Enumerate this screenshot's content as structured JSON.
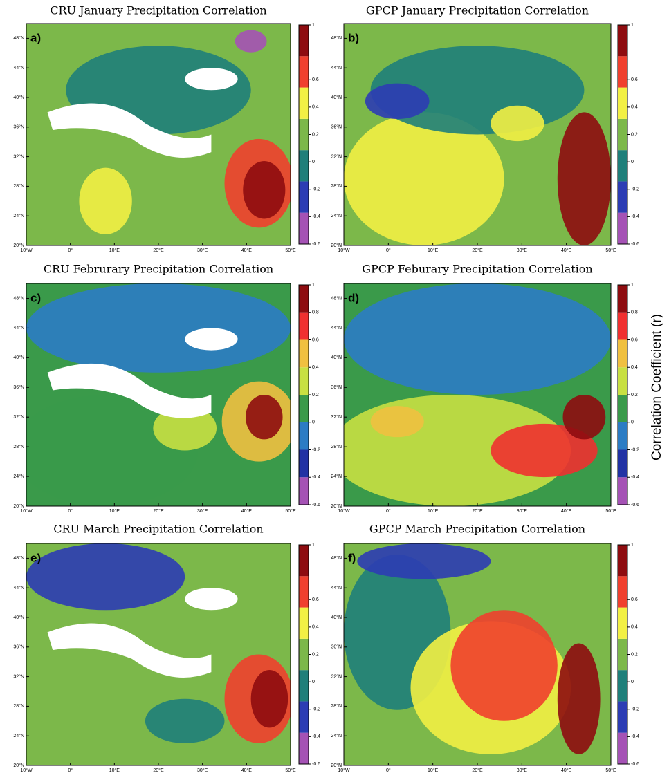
{
  "chart_data": [
    {
      "type": "map",
      "title": "CRU January Precipitation Correlation",
      "label": "a)",
      "xlim": [
        -10,
        50
      ],
      "ylim": [
        20,
        50
      ],
      "xticks": [
        {
          "value": -10,
          "label": "10°W"
        },
        {
          "value": 0,
          "label": "0°"
        },
        {
          "value": 10,
          "label": "10°E"
        },
        {
          "value": 20,
          "label": "20°E"
        },
        {
          "value": 30,
          "label": "30°E"
        },
        {
          "value": 40,
          "label": "40°E"
        },
        {
          "value": 50,
          "label": "50°E"
        }
      ],
      "yticks": [
        {
          "value": 20,
          "label": "20°N"
        },
        {
          "value": 24,
          "label": "24°N"
        },
        {
          "value": 28,
          "label": "28°N"
        },
        {
          "value": 32,
          "label": "32°N"
        },
        {
          "value": 36,
          "label": "36°N"
        },
        {
          "value": 40,
          "label": "40°N"
        },
        {
          "value": 44,
          "label": "44°N"
        },
        {
          "value": 48,
          "label": "48°N"
        }
      ],
      "clim": [
        -0.6,
        1
      ],
      "cticks": [
        1,
        0.6,
        0.4,
        0.2,
        0,
        -0.2,
        -0.4,
        -0.6
      ],
      "colors": [
        "#a552b5",
        "#2c3cb4",
        "#1f7f7a",
        "#7cb84a",
        "#f2f044",
        "#f0402e",
        "#8e0c10"
      ]
    },
    {
      "type": "map",
      "title": "GPCP January Precipitation Correlation",
      "label": "b)",
      "xlim": [
        -10,
        50
      ],
      "ylim": [
        20,
        50
      ],
      "xticks": [
        {
          "value": -10,
          "label": "10°W"
        },
        {
          "value": 0,
          "label": "0°"
        },
        {
          "value": 10,
          "label": "10°E"
        },
        {
          "value": 20,
          "label": "20°E"
        },
        {
          "value": 30,
          "label": "30°E"
        },
        {
          "value": 40,
          "label": "40°E"
        },
        {
          "value": 50,
          "label": "50°E"
        }
      ],
      "yticks": [
        {
          "value": 20,
          "label": "20°N"
        },
        {
          "value": 24,
          "label": "24°N"
        },
        {
          "value": 28,
          "label": "28°N"
        },
        {
          "value": 32,
          "label": "32°N"
        },
        {
          "value": 36,
          "label": "36°N"
        },
        {
          "value": 40,
          "label": "40°N"
        },
        {
          "value": 44,
          "label": "44°N"
        },
        {
          "value": 48,
          "label": "48°N"
        }
      ],
      "clim": [
        -0.6,
        1
      ],
      "cticks": [
        1,
        0.6,
        0.4,
        0.2,
        0,
        -0.2,
        -0.4,
        -0.6
      ],
      "colors": [
        "#a552b5",
        "#2c3cb4",
        "#1f7f7a",
        "#7cb84a",
        "#f2f044",
        "#f0402e",
        "#8e0c10"
      ]
    },
    {
      "type": "map",
      "title": "CRU Februrary Precipitation Correlation",
      "label": "c)",
      "xlim": [
        -10,
        50
      ],
      "ylim": [
        20,
        50
      ],
      "xticks": [
        {
          "value": -10,
          "label": "10°W"
        },
        {
          "value": 0,
          "label": "0°"
        },
        {
          "value": 10,
          "label": "10°E"
        },
        {
          "value": 20,
          "label": "20°E"
        },
        {
          "value": 30,
          "label": "30°E"
        },
        {
          "value": 40,
          "label": "40°E"
        },
        {
          "value": 50,
          "label": "50°E"
        }
      ],
      "yticks": [
        {
          "value": 20,
          "label": "20°N"
        },
        {
          "value": 24,
          "label": "24°N"
        },
        {
          "value": 28,
          "label": "28°N"
        },
        {
          "value": 32,
          "label": "32°N"
        },
        {
          "value": 36,
          "label": "36°N"
        },
        {
          "value": 40,
          "label": "40°N"
        },
        {
          "value": 44,
          "label": "44°N"
        },
        {
          "value": 48,
          "label": "48°N"
        }
      ],
      "clim": [
        -0.6,
        1
      ],
      "cticks": [
        1,
        0.8,
        0.6,
        0.4,
        0.2,
        0,
        -0.2,
        -0.4,
        -0.6
      ],
      "colors": [
        "#a552b5",
        "#2232a4",
        "#2c7cc4",
        "#3a9a4a",
        "#c8e042",
        "#f0c040",
        "#f03030",
        "#8e0c10"
      ]
    },
    {
      "type": "map",
      "title": "GPCP Feburary Precipitation Correlation",
      "label": "d)",
      "xlim": [
        -10,
        50
      ],
      "ylim": [
        20,
        50
      ],
      "xticks": [
        {
          "value": -10,
          "label": "10°W"
        },
        {
          "value": 0,
          "label": "0°"
        },
        {
          "value": 10,
          "label": "10°E"
        },
        {
          "value": 20,
          "label": "20°E"
        },
        {
          "value": 30,
          "label": "30°E"
        },
        {
          "value": 40,
          "label": "40°E"
        },
        {
          "value": 50,
          "label": "50°E"
        }
      ],
      "yticks": [
        {
          "value": 20,
          "label": "20°N"
        },
        {
          "value": 24,
          "label": "24°N"
        },
        {
          "value": 28,
          "label": "28°N"
        },
        {
          "value": 32,
          "label": "32°N"
        },
        {
          "value": 36,
          "label": "36°N"
        },
        {
          "value": 40,
          "label": "40°N"
        },
        {
          "value": 44,
          "label": "44°N"
        },
        {
          "value": 48,
          "label": "48°N"
        }
      ],
      "clim": [
        -0.6,
        1
      ],
      "cticks": [
        1,
        0.8,
        0.6,
        0.4,
        0.2,
        0,
        -0.2,
        -0.4,
        -0.6
      ],
      "colors": [
        "#a552b5",
        "#2232a4",
        "#2c7cc4",
        "#3a9a4a",
        "#c8e042",
        "#f0c040",
        "#f03030",
        "#8e0c10"
      ]
    },
    {
      "type": "map",
      "title": "CRU March Precipitation Correlation",
      "label": "e)",
      "xlim": [
        -10,
        50
      ],
      "ylim": [
        20,
        50
      ],
      "xticks": [
        {
          "value": -10,
          "label": "10°W"
        },
        {
          "value": 0,
          "label": "0°"
        },
        {
          "value": 10,
          "label": "10°E"
        },
        {
          "value": 20,
          "label": "20°E"
        },
        {
          "value": 30,
          "label": "30°E"
        },
        {
          "value": 40,
          "label": "40°E"
        },
        {
          "value": 50,
          "label": "50°E"
        }
      ],
      "yticks": [
        {
          "value": 20,
          "label": "20°N"
        },
        {
          "value": 24,
          "label": "24°N"
        },
        {
          "value": 28,
          "label": "28°N"
        },
        {
          "value": 32,
          "label": "32°N"
        },
        {
          "value": 36,
          "label": "36°N"
        },
        {
          "value": 40,
          "label": "40°N"
        },
        {
          "value": 44,
          "label": "44°N"
        },
        {
          "value": 48,
          "label": "48°N"
        }
      ],
      "clim": [
        -0.6,
        1
      ],
      "cticks": [
        1,
        0.6,
        0.4,
        0.2,
        0,
        -0.2,
        -0.4,
        -0.6
      ],
      "colors": [
        "#a552b5",
        "#2c3cb4",
        "#1f7f7a",
        "#7cb84a",
        "#f2f044",
        "#f0402e",
        "#8e0c10"
      ]
    },
    {
      "type": "map",
      "title": "GPCP March Precipitation Correlation",
      "label": "f)",
      "xlim": [
        -10,
        50
      ],
      "ylim": [
        20,
        50
      ],
      "xticks": [
        {
          "value": -10,
          "label": "10°W"
        },
        {
          "value": 0,
          "label": "0°"
        },
        {
          "value": 10,
          "label": "10°E"
        },
        {
          "value": 20,
          "label": "20°E"
        },
        {
          "value": 30,
          "label": "30°E"
        },
        {
          "value": 40,
          "label": "40°E"
        },
        {
          "value": 50,
          "label": "50°E"
        }
      ],
      "yticks": [
        {
          "value": 20,
          "label": "20°N"
        },
        {
          "value": 24,
          "label": "24°N"
        },
        {
          "value": 28,
          "label": "28°N"
        },
        {
          "value": 32,
          "label": "32°N"
        },
        {
          "value": 36,
          "label": "36°N"
        },
        {
          "value": 40,
          "label": "40°N"
        },
        {
          "value": 44,
          "label": "44°N"
        },
        {
          "value": 48,
          "label": "48°N"
        }
      ],
      "clim": [
        -0.6,
        1
      ],
      "cticks": [
        1,
        0.6,
        0.4,
        0.2,
        0,
        -0.2,
        -0.4,
        -0.6
      ],
      "colors": [
        "#a552b5",
        "#2c3cb4",
        "#1f7f7a",
        "#7cb84a",
        "#f2f044",
        "#f0402e",
        "#8e0c10"
      ]
    }
  ],
  "colorbar_label": "Correlation Coefficient (r)"
}
